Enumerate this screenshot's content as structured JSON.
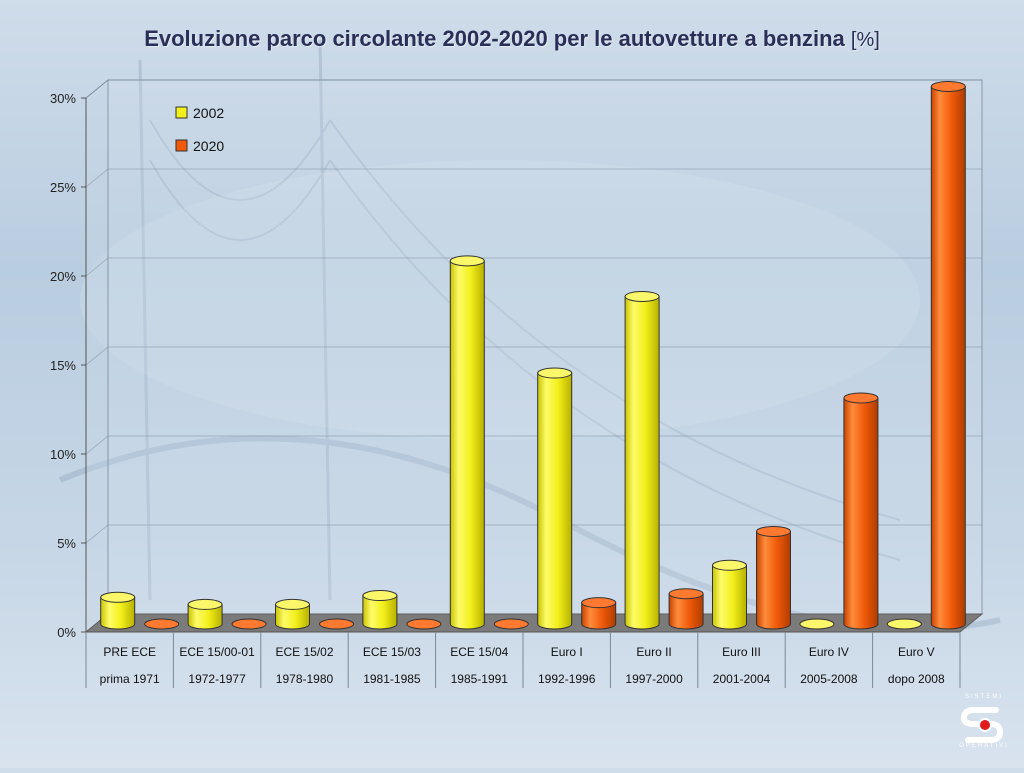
{
  "page": {
    "title": "Evoluzione parco circolante 2002-2020 per le autovetture a benzina",
    "title_unit": "[%]"
  },
  "logo": {
    "top_text": "SISTEMI",
    "bottom_text": "OPERATIVI",
    "name": "sistemi-operativi-logo"
  },
  "colors": {
    "series_2002": "#f2ef1a",
    "series_2020": "#f05a0a",
    "title": "#2a2f57",
    "floor": "#7b7b7b"
  },
  "chart_data": {
    "type": "bar",
    "title": "Evoluzione parco circolante 2002-2020 per le autovetture a benzina [%]",
    "categories": [
      "PRE ECE",
      "ECE 15/00-01",
      "ECE 15/02",
      "ECE 15/03",
      "ECE 15/04",
      "Euro I",
      "Euro II",
      "Euro III",
      "Euro IV",
      "Euro V"
    ],
    "category_periods": [
      "prima 1971",
      "1972-1977",
      "1978-1980",
      "1981-1985",
      "1985-1991",
      "1992-1996",
      "1997-2000",
      "2001-2004",
      "2005-2008",
      "dopo 2008"
    ],
    "series": [
      {
        "name": "2002",
        "values": [
          1.5,
          1.1,
          1.1,
          1.6,
          20.4,
          14.1,
          18.4,
          3.3,
          0.0,
          0.0
        ]
      },
      {
        "name": "2020",
        "values": [
          0.0,
          0.0,
          0.0,
          0.0,
          0.0,
          1.2,
          1.7,
          5.2,
          12.7,
          30.2
        ]
      }
    ],
    "y_ticks": [
      "0%",
      "5%",
      "10%",
      "15%",
      "20%",
      "25%",
      "30%"
    ],
    "ylim": [
      0,
      30
    ],
    "legend_position": "top-left",
    "grid": true,
    "style": "3d-cylinder"
  }
}
